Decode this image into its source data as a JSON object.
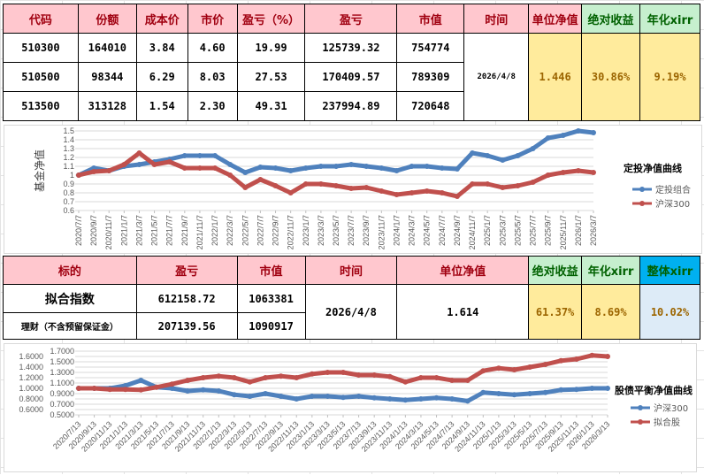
{
  "top_table": {
    "headers": [
      "代码",
      "份额",
      "成本价",
      "市价",
      "盈亏（%）",
      "盈亏",
      "市值",
      "时间",
      "单位净值",
      "绝对收益",
      "年化xirr"
    ],
    "rows": [
      [
        "510300",
        "164010",
        "3.84",
        "4.60",
        "19.99",
        "125739.32",
        "754774"
      ],
      [
        "510500",
        "98344",
        "6.29",
        "8.03",
        "27.53",
        "170409.57",
        "789309"
      ],
      [
        "513500",
        "313128",
        "1.54",
        "2.30",
        "49.31",
        "237994.89",
        "720648"
      ]
    ],
    "date": "2026/4/8",
    "nav": "1.446",
    "abs_return": "30.86%",
    "xirr": "9.19%"
  },
  "bottom_table": {
    "headers": [
      "标的",
      "盈亏",
      "市值",
      "时间",
      "单位净值",
      "绝对收益",
      "年化xirr",
      "整体xirr"
    ],
    "rows": [
      [
        "拟合指数",
        "612158.72",
        "1063381"
      ],
      [
        "理财（不含预留保证金）",
        "207139.56",
        "1090917"
      ]
    ],
    "date": "2026/4/8",
    "nav": "1.614",
    "abs_return": "61.37%",
    "xirr": "8.69%",
    "overall_xirr": "10.02%"
  },
  "colors": {
    "blue": "#4f81bd",
    "red": "#c0504d"
  },
  "chart_data": [
    {
      "type": "line",
      "title": "定投净值曲线",
      "ylabel": "基金净值",
      "ylim": [
        0.6,
        1.5
      ],
      "yticks": [
        "0.6",
        "0.7",
        "0.8",
        "0.9",
        "1",
        "1.1",
        "1.2",
        "1.3",
        "1.4",
        "1.5"
      ],
      "grid": true,
      "legend": "right",
      "x": [
        "2020/7/7",
        "2020/9/7",
        "2020/11/7",
        "2021/1/7",
        "2021/3/7",
        "2021/5/7",
        "2021/7/7",
        "2021/9/7",
        "2021/11/7",
        "2022/1/7",
        "2022/3/7",
        "2022/5/7",
        "2022/7/7",
        "2022/9/7",
        "2022/11/7",
        "2023/1/7",
        "2023/3/7",
        "2023/5/7",
        "2023/7/7",
        "2023/9/7",
        "2023/11/7",
        "2024/1/7",
        "2024/3/7",
        "2024/5/7",
        "2024/7/7",
        "2024/9/7",
        "2024/11/7",
        "2025/1/7",
        "2025/3/7",
        "2025/5/7",
        "2025/7/7",
        "2025/9/7",
        "2025/11/7",
        "2026/1/7",
        "2026/3/7"
      ],
      "series": [
        {
          "name": "定投组合",
          "color": "#4f81bd",
          "values": [
            1.0,
            1.08,
            1.05,
            1.1,
            1.12,
            1.15,
            1.18,
            1.22,
            1.22,
            1.22,
            1.12,
            1.03,
            1.09,
            1.08,
            1.05,
            1.08,
            1.1,
            1.1,
            1.12,
            1.1,
            1.08,
            1.05,
            1.1,
            1.1,
            1.08,
            1.07,
            1.25,
            1.22,
            1.17,
            1.22,
            1.3,
            1.42,
            1.45,
            1.5,
            1.48
          ]
        },
        {
          "name": "沪深300",
          "color": "#c0504d",
          "values": [
            1.0,
            1.04,
            1.05,
            1.12,
            1.25,
            1.12,
            1.15,
            1.08,
            1.08,
            1.08,
            1.0,
            0.86,
            0.95,
            0.88,
            0.8,
            0.9,
            0.9,
            0.88,
            0.85,
            0.86,
            0.82,
            0.78,
            0.8,
            0.82,
            0.8,
            0.76,
            0.9,
            0.9,
            0.86,
            0.88,
            0.92,
            1.0,
            1.03,
            1.05,
            1.03
          ]
        }
      ]
    },
    {
      "type": "line",
      "title": "股债平衡净值曲线",
      "ylim": [
        0.5,
        1.7
      ],
      "yticks": [
        "0.5000",
        "0.6000",
        "0.7000",
        "0.8000",
        "0.9000",
        "1.0000",
        "1.1000",
        "1.2000",
        "1.3000",
        "1.4000",
        "1.5000",
        "1.6000",
        "1.7000"
      ],
      "grid": true,
      "legend": "right",
      "x": [
        "2020/7/13",
        "2020/9/13",
        "2020/11/13",
        "2021/1/13",
        "2021/3/13",
        "2021/5/13",
        "2021/7/13",
        "2021/9/13",
        "2021/11/13",
        "2022/1/13",
        "2022/3/13",
        "2022/5/13",
        "2022/7/13",
        "2022/9/13",
        "2022/11/13",
        "2023/1/13",
        "2023/3/13",
        "2023/5/13",
        "2023/7/13",
        "2023/9/13",
        "2023/11/13",
        "2024/1/13",
        "2024/3/13",
        "2024/5/13",
        "2024/7/13",
        "2024/9/13",
        "2024/11/13",
        "2025/1/13",
        "2025/3/13",
        "2025/5/13",
        "2025/7/13",
        "2025/9/13",
        "2025/11/13",
        "2026/1/13",
        "2026/3/13"
      ],
      "series": [
        {
          "name": "沪深300",
          "color": "#4f81bd",
          "values": [
            1.0,
            1.0,
            1.0,
            1.05,
            1.15,
            1.02,
            1.0,
            0.95,
            0.97,
            0.95,
            0.88,
            0.85,
            0.9,
            0.85,
            0.8,
            0.85,
            0.85,
            0.83,
            0.85,
            0.82,
            0.8,
            0.78,
            0.8,
            0.82,
            0.8,
            0.76,
            0.92,
            0.9,
            0.88,
            0.9,
            0.92,
            0.97,
            0.98,
            1.0,
            1.0
          ]
        },
        {
          "name": "拟合股",
          "color": "#c0504d",
          "values": [
            1.0,
            1.0,
            0.98,
            0.98,
            0.97,
            1.02,
            1.08,
            1.15,
            1.2,
            1.23,
            1.2,
            1.12,
            1.2,
            1.23,
            1.2,
            1.27,
            1.3,
            1.3,
            1.25,
            1.25,
            1.22,
            1.12,
            1.2,
            1.2,
            1.15,
            1.15,
            1.33,
            1.38,
            1.35,
            1.4,
            1.45,
            1.52,
            1.55,
            1.62,
            1.6
          ]
        }
      ]
    }
  ]
}
